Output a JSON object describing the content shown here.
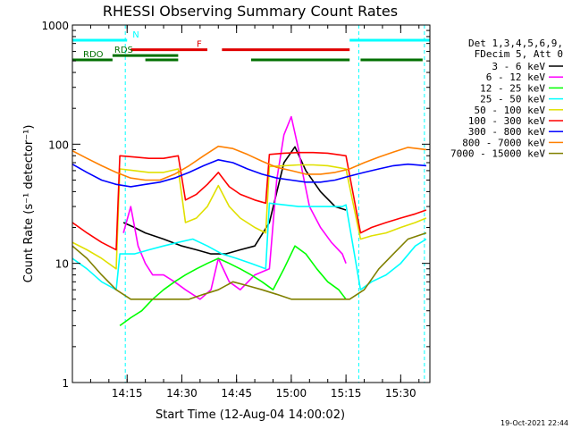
{
  "chart_data": {
    "type": "line",
    "title": "RHESSI Observing Summary Count Rates",
    "xlabel": "Start Time (12-Aug-04 14:00:02)",
    "ylabel": "Count Rate (s⁻¹ detector⁻¹)",
    "xlim_minutes": [
      0,
      98
    ],
    "ylim": [
      1,
      1000
    ],
    "yscale": "log",
    "x_ticks": [
      {
        "minutes": 15,
        "label": "14:15"
      },
      {
        "minutes": 30,
        "label": "14:30"
      },
      {
        "minutes": 45,
        "label": "14:45"
      },
      {
        "minutes": 60,
        "label": "15:00"
      },
      {
        "minutes": 75,
        "label": "15:15"
      },
      {
        "minutes": 90,
        "label": "15:30"
      }
    ],
    "y_ticks": [
      {
        "value": 1,
        "label": "1"
      },
      {
        "value": 10,
        "label": "10"
      },
      {
        "value": 100,
        "label": "100"
      },
      {
        "value": 1000,
        "label": "1000"
      }
    ],
    "legend_header": [
      "Det 1,3,4,5,6,9,",
      "FDecim 5, Att 0"
    ],
    "legend_position": "right",
    "series": [
      {
        "name": "3 - 6 keV",
        "color": "#000000",
        "x": [
          14,
          17,
          20,
          25,
          30,
          34,
          38,
          42,
          46,
          50,
          54,
          58,
          61,
          64,
          68,
          72,
          75
        ],
        "y": [
          22,
          20,
          18,
          16,
          14,
          13,
          12,
          12,
          13,
          14,
          22,
          70,
          95,
          60,
          40,
          30,
          28
        ]
      },
      {
        "name": "6 - 12 keV",
        "color": "#ff00ff",
        "x": [
          14,
          16,
          18,
          20,
          22,
          25,
          28,
          31,
          35,
          38,
          40,
          43,
          46,
          50,
          54,
          56,
          58,
          60,
          62,
          63,
          65,
          68,
          71,
          74,
          75
        ],
        "y": [
          18,
          30,
          14,
          10,
          8,
          8,
          7,
          6,
          5,
          6,
          11,
          7,
          6,
          8,
          9,
          50,
          120,
          170,
          90,
          60,
          30,
          20,
          15,
          12,
          10
        ]
      },
      {
        "name": "12 - 25 keV",
        "color": "#00ff00",
        "x": [
          13,
          16,
          19,
          22,
          25,
          28,
          31,
          34,
          37,
          40,
          43,
          46,
          49,
          52,
          55,
          58,
          61,
          64,
          67,
          70,
          73,
          75
        ],
        "y": [
          3,
          3.5,
          4,
          5,
          6,
          7,
          8,
          9,
          10,
          11,
          10,
          9,
          8,
          7,
          6,
          9,
          14,
          12,
          9,
          7,
          6,
          5
        ]
      },
      {
        "name": "25 - 50 keV",
        "color": "#00ffff",
        "x": [
          0,
          4,
          8,
          12,
          13,
          17,
          21,
          25,
          29,
          33,
          37,
          41,
          45,
          49,
          53,
          54,
          58,
          62,
          66,
          70,
          74,
          75,
          79,
          82,
          86,
          90,
          94,
          97
        ],
        "y": [
          11,
          9,
          7,
          6,
          12,
          12,
          13,
          14,
          15,
          16,
          14,
          12,
          11,
          10,
          9,
          32,
          31,
          30,
          30,
          30,
          30,
          31,
          6,
          7,
          8,
          10,
          14,
          16
        ]
      },
      {
        "name": "50 - 100 keV",
        "color": "#e0e000",
        "x": [
          0,
          4,
          8,
          12,
          13,
          17,
          21,
          25,
          29,
          31,
          34,
          37,
          40,
          43,
          46,
          50,
          53,
          54,
          58,
          62,
          66,
          70,
          75,
          79,
          82,
          86,
          90,
          94,
          97
        ],
        "y": [
          15,
          13,
          11,
          9,
          62,
          60,
          58,
          58,
          62,
          22,
          24,
          30,
          45,
          30,
          24,
          20,
          18,
          65,
          66,
          67,
          67,
          66,
          62,
          16,
          17,
          18,
          20,
          22,
          24
        ]
      },
      {
        "name": "100 - 300 keV",
        "color": "#ff0000",
        "x": [
          0,
          4,
          8,
          12,
          13,
          17,
          21,
          25,
          29,
          31,
          34,
          37,
          40,
          43,
          46,
          50,
          53,
          54,
          58,
          62,
          66,
          70,
          75,
          79,
          82,
          86,
          90,
          94,
          97
        ],
        "y": [
          22,
          18,
          15,
          13,
          80,
          78,
          76,
          76,
          80,
          34,
          38,
          46,
          58,
          44,
          38,
          34,
          32,
          82,
          84,
          85,
          85,
          84,
          80,
          18,
          20,
          22,
          24,
          26,
          28
        ]
      },
      {
        "name": "300 - 800 keV",
        "color": "#0000ff",
        "x": [
          0,
          4,
          8,
          12,
          16,
          20,
          24,
          28,
          32,
          36,
          40,
          44,
          48,
          52,
          56,
          60,
          64,
          68,
          72,
          76,
          80,
          84,
          88,
          92,
          97
        ],
        "y": [
          68,
          58,
          50,
          46,
          44,
          46,
          48,
          52,
          58,
          66,
          74,
          70,
          62,
          56,
          52,
          50,
          48,
          48,
          50,
          54,
          58,
          62,
          66,
          68,
          66
        ]
      },
      {
        "name": "800 - 7000 keV",
        "color": "#ff8000",
        "x": [
          0,
          4,
          8,
          12,
          16,
          20,
          24,
          28,
          32,
          36,
          40,
          44,
          48,
          52,
          56,
          60,
          64,
          68,
          72,
          76,
          80,
          84,
          88,
          92,
          97
        ],
        "y": [
          88,
          76,
          66,
          58,
          52,
          50,
          50,
          56,
          66,
          80,
          96,
          92,
          82,
          72,
          64,
          60,
          56,
          56,
          58,
          62,
          70,
          78,
          86,
          94,
          90
        ]
      },
      {
        "name": "7000 - 15000 keV",
        "color": "#808000",
        "x": [
          0,
          4,
          8,
          12,
          16,
          20,
          24,
          28,
          32,
          36,
          40,
          44,
          48,
          52,
          56,
          60,
          64,
          68,
          72,
          76,
          80,
          84,
          88,
          92,
          97
        ],
        "y": [
          14,
          11,
          8,
          6,
          5,
          5,
          5,
          5,
          5,
          5.5,
          6,
          7,
          6.5,
          6,
          5.5,
          5,
          5,
          5,
          5,
          5,
          6,
          9,
          12,
          16,
          18
        ]
      }
    ],
    "flags": [
      {
        "label": "N",
        "color": "#00ffff",
        "y": 745,
        "intervals": [
          [
            0,
            15
          ],
          [
            76,
            98
          ]
        ]
      },
      {
        "label": "F",
        "color": "#e00000",
        "y": 620,
        "intervals": [
          [
            16,
            37
          ],
          [
            41,
            76
          ]
        ]
      },
      {
        "label": "RDO",
        "color": "#007000",
        "y": 510,
        "intervals": [
          [
            0,
            11
          ],
          [
            20,
            29
          ],
          [
            49,
            76
          ],
          [
            79,
            96
          ]
        ]
      },
      {
        "label": "RDS",
        "color": "#007000",
        "y": 555,
        "intervals": [
          [
            11,
            29
          ]
        ]
      }
    ],
    "attenuator_lines": [
      {
        "minutes": 14.5,
        "color": "#00ffff"
      },
      {
        "minutes": 78.5,
        "color": "#00ffff"
      },
      {
        "minutes": 96.5,
        "color": "#00ffff"
      }
    ],
    "timestamp": "19-Oct-2021 22:44"
  }
}
